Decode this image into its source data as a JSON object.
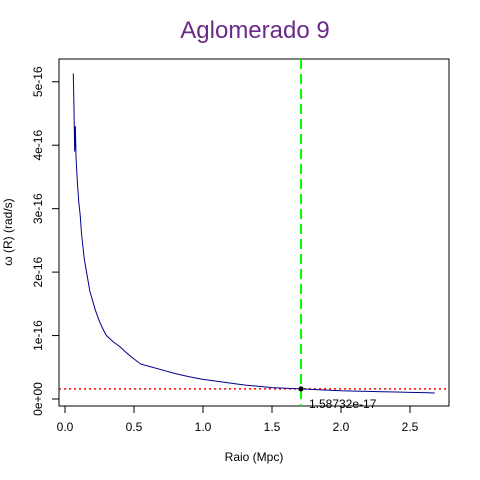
{
  "chart_data": {
    "type": "line",
    "title": "Aglomerado 9",
    "xlabel": "Raio (Mpc)",
    "ylabel": "ω (R) (rad/s)",
    "xlim": [
      0,
      2.8
    ],
    "ylim": [
      0,
      5.4e-16
    ],
    "x_ticks": [
      {
        "value": 0.0,
        "label": "0.0"
      },
      {
        "value": 0.5,
        "label": "0.5"
      },
      {
        "value": 1.0,
        "label": "1.0"
      },
      {
        "value": 1.5,
        "label": "1.5"
      },
      {
        "value": 2.0,
        "label": "2.0"
      },
      {
        "value": 2.5,
        "label": "2.5"
      }
    ],
    "y_ticks": [
      {
        "value": 0,
        "label": "0e+00"
      },
      {
        "value": 1e-16,
        "label": "1e-16"
      },
      {
        "value": 2e-16,
        "label": "2e-16"
      },
      {
        "value": 3e-16,
        "label": "3e-16"
      },
      {
        "value": 4e-16,
        "label": "4e-16"
      },
      {
        "value": 5e-16,
        "label": "5e-16"
      }
    ],
    "grid": false,
    "series": [
      {
        "color": "#00008b",
        "x": [
          0.06,
          0.065,
          0.07,
          0.075,
          0.08,
          0.09,
          0.1,
          0.11,
          0.12,
          0.14,
          0.16,
          0.18,
          0.2,
          0.22,
          0.25,
          0.28,
          0.3,
          0.35,
          0.4,
          0.45,
          0.5,
          0.55,
          0.6,
          0.7,
          0.8,
          0.9,
          1.0,
          1.1,
          1.2,
          1.3,
          1.4,
          1.5,
          1.6,
          1.71,
          1.8,
          1.9,
          2.0,
          2.1,
          2.2,
          2.3,
          2.4,
          2.5,
          2.6,
          2.68
        ],
        "y": [
          5.13e-16,
          4.6e-16,
          3.9e-16,
          4.3e-16,
          3.8e-16,
          3.4e-16,
          3.1e-16,
          2.9e-16,
          2.6e-16,
          2.2e-16,
          1.95e-16,
          1.7e-16,
          1.55e-16,
          1.4e-16,
          1.22e-16,
          1.08e-16,
          1e-16,
          9e-17,
          8.2e-17,
          7.2e-17,
          6.3e-17,
          5.5e-17,
          5.2e-17,
          4.6e-17,
          4e-17,
          3.5e-17,
          3.1e-17,
          2.8e-17,
          2.5e-17,
          2.2e-17,
          2e-17,
          1.8e-17,
          1.7e-17,
          1.587e-17,
          1.5e-17,
          1.4e-17,
          1.3e-17,
          1.25e-17,
          1.2e-17,
          1.15e-17,
          1.1e-17,
          1.05e-17,
          1e-17,
          9.5e-18
        ]
      }
    ],
    "reference_lines": {
      "vertical_x": 1.71,
      "vertical_color": "#00ff00",
      "horizontal_y": 1.58732e-17,
      "horizontal_color": "#ff0000"
    },
    "marker": {
      "x": 1.71,
      "y": 1.58732e-17,
      "label": "1.58732e-17"
    }
  }
}
